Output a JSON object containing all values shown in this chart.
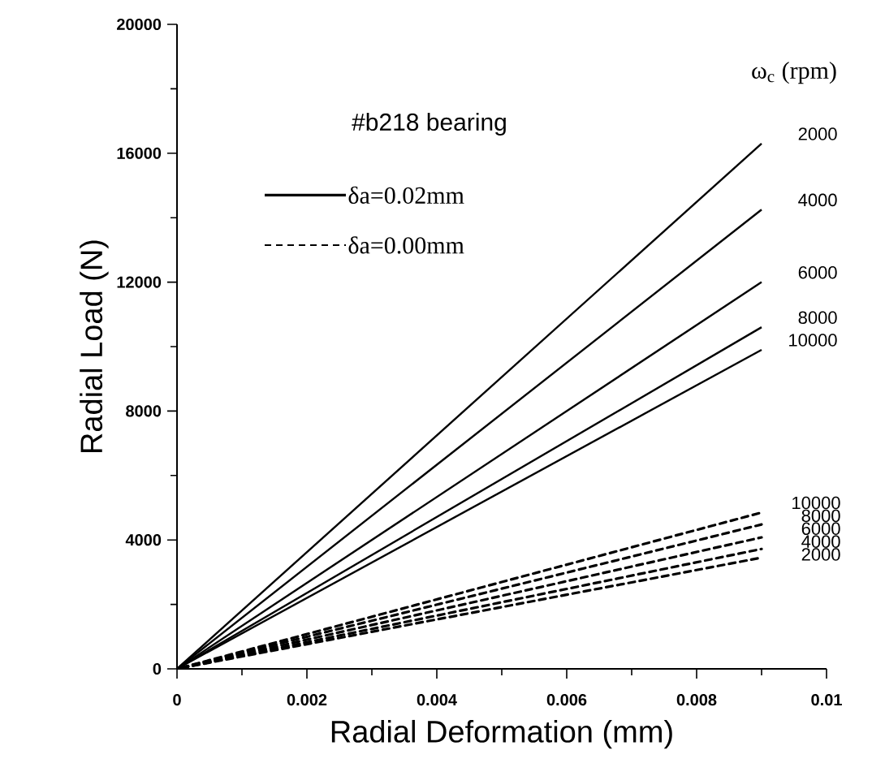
{
  "chart_data": {
    "type": "line",
    "xlabel": "Radial Deformation (mm)",
    "ylabel": "Radial Load (N)",
    "legend_title": "ω$_{c}$ (rpm)",
    "annotations": [
      "#b218 bearing",
      "δa=0.02mm",
      "δa=0.00mm"
    ],
    "xlim": [
      0,
      0.01
    ],
    "ylim": [
      0,
      20000
    ],
    "xticks": [
      0,
      0.002,
      0.004,
      0.006,
      0.008,
      0.01
    ],
    "yticks": [
      0,
      4000,
      8000,
      12000,
      16000,
      20000
    ],
    "x": [
      0,
      0.009
    ],
    "series": [
      {
        "name": "2000",
        "color": "#000000",
        "line_style": "solid",
        "values": [
          0,
          16300
        ]
      },
      {
        "name": "4000",
        "color": "#000000",
        "line_style": "solid",
        "values": [
          0,
          14250
        ]
      },
      {
        "name": "6000",
        "color": "#000000",
        "line_style": "solid",
        "values": [
          0,
          12000
        ]
      },
      {
        "name": "8000",
        "color": "#000000",
        "line_style": "solid",
        "values": [
          0,
          10600
        ]
      },
      {
        "name": "10000",
        "color": "#000000",
        "line_style": "solid",
        "values": [
          0,
          9900
        ]
      },
      {
        "name": "10000",
        "color": "#000000",
        "line_style": "dashed",
        "values": [
          0,
          4850
        ]
      },
      {
        "name": "8000",
        "color": "#000000",
        "line_style": "dashed",
        "values": [
          0,
          4480
        ]
      },
      {
        "name": "6000",
        "color": "#000000",
        "line_style": "dashed",
        "values": [
          0,
          4080
        ]
      },
      {
        "name": "4000",
        "color": "#000000",
        "line_style": "dashed",
        "values": [
          0,
          3720
        ]
      },
      {
        "name": "2000",
        "color": "#000000",
        "line_style": "dashed",
        "values": [
          0,
          3450
        ]
      }
    ]
  }
}
